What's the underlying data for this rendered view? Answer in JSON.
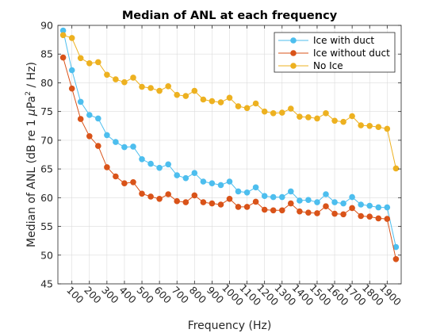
{
  "chart_data": {
    "type": "line",
    "title": "Median of ANL at each frequency",
    "xlabel": "Frequency (Hz)",
    "ylabel_parts": [
      "Median of ANL (dB re 1 ",
      "μ",
      "Pa",
      "2",
      " / Hz)"
    ],
    "xlim": [
      20,
      1980
    ],
    "ylim": [
      45,
      90
    ],
    "xticks": [
      100,
      200,
      300,
      400,
      500,
      600,
      700,
      800,
      900,
      1000,
      1100,
      1200,
      1300,
      1400,
      1500,
      1600,
      1700,
      1800,
      1900
    ],
    "yticks": [
      45,
      50,
      55,
      60,
      65,
      70,
      75,
      80,
      85,
      90
    ],
    "grid": true,
    "legend_position": "top-right",
    "x": [
      50,
      100,
      150,
      200,
      250,
      300,
      350,
      400,
      450,
      500,
      550,
      600,
      650,
      700,
      750,
      800,
      850,
      900,
      950,
      1000,
      1050,
      1100,
      1150,
      1200,
      1250,
      1300,
      1350,
      1400,
      1450,
      1500,
      1550,
      1600,
      1650,
      1700,
      1750,
      1800,
      1850,
      1900,
      1950
    ],
    "series": [
      {
        "name": "Ice with duct",
        "color": "#4DBEEE",
        "values": [
          89.1,
          82.2,
          76.7,
          74.4,
          73.8,
          70.9,
          69.7,
          68.8,
          68.9,
          66.7,
          65.9,
          65.2,
          65.8,
          63.9,
          63.4,
          64.3,
          62.8,
          62.5,
          62.2,
          62.8,
          61.1,
          60.9,
          61.8,
          60.3,
          60.1,
          60.1,
          61.1,
          59.5,
          59.6,
          59.2,
          60.6,
          59.2,
          59.0,
          60.1,
          58.8,
          58.6,
          58.3,
          58.3,
          51.4
        ]
      },
      {
        "name": "Ice without duct",
        "color": "#D95319",
        "values": [
          84.4,
          79.0,
          73.7,
          70.7,
          69.0,
          65.3,
          63.7,
          62.5,
          62.7,
          60.7,
          60.2,
          59.8,
          60.6,
          59.4,
          59.2,
          60.4,
          59.2,
          59.0,
          58.8,
          59.8,
          58.4,
          58.4,
          59.3,
          57.9,
          57.8,
          57.8,
          59.0,
          57.6,
          57.4,
          57.3,
          58.5,
          57.2,
          57.1,
          58.2,
          56.8,
          56.7,
          56.4,
          56.3,
          49.3
        ]
      },
      {
        "name": "No Ice",
        "color": "#EDB120",
        "values": [
          88.3,
          87.8,
          84.3,
          83.4,
          83.6,
          81.4,
          80.6,
          80.1,
          80.9,
          79.3,
          79.1,
          78.6,
          79.4,
          77.9,
          77.7,
          78.6,
          77.1,
          76.8,
          76.6,
          77.4,
          75.9,
          75.6,
          76.4,
          75.0,
          74.7,
          74.8,
          75.5,
          74.1,
          74.0,
          73.8,
          74.7,
          73.4,
          73.2,
          74.2,
          72.6,
          72.5,
          72.3,
          72.0,
          65.1
        ]
      }
    ]
  }
}
